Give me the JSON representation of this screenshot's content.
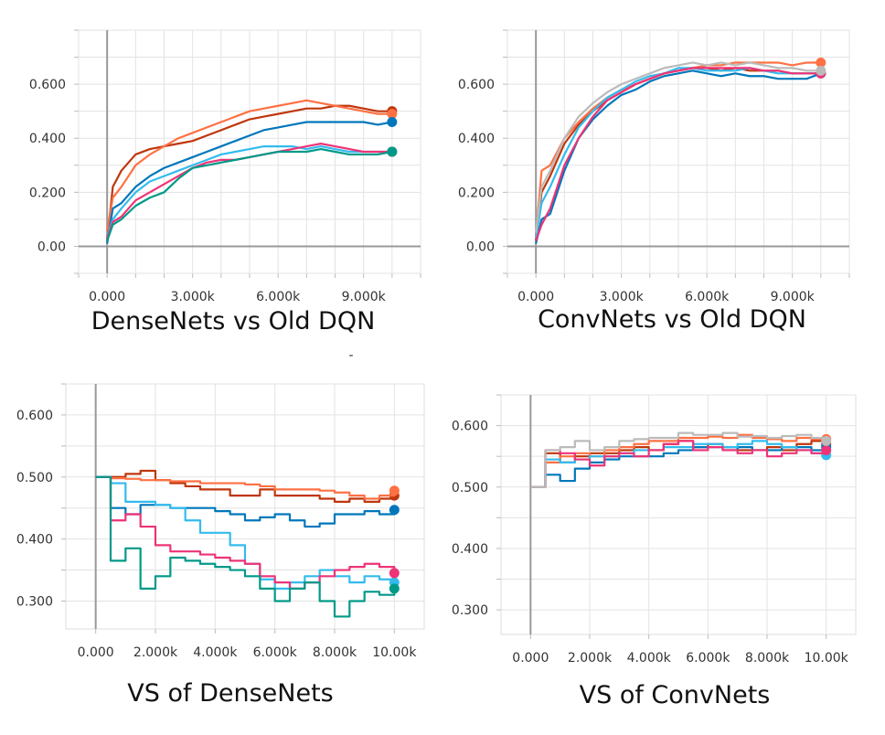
{
  "stray_mark": "-",
  "chart_data": [
    {
      "type": "line",
      "title": "DenseNets vs Old DQN",
      "xlabel": "",
      "ylabel": "",
      "xlim": [
        -1000,
        11000
      ],
      "ylim": [
        -0.1,
        0.8
      ],
      "x_ticks": [
        0,
        3000,
        6000,
        9000
      ],
      "x_tick_labels": [
        "0.000",
        "3.000k",
        "6.000k",
        "9.000k"
      ],
      "y_ticks": [
        0,
        0.2,
        0.4,
        0.6
      ],
      "y_tick_labels": [
        "0.00",
        "0.200",
        "0.400",
        "0.600"
      ],
      "grid": true,
      "x": [
        0,
        200,
        500,
        1000,
        1500,
        2000,
        2500,
        3000,
        3500,
        4000,
        4500,
        5000,
        5500,
        6000,
        6500,
        7000,
        7500,
        8000,
        8500,
        9000,
        9500,
        10000
      ],
      "series": [
        {
          "color": "#bf360c",
          "values": [
            0.02,
            0.22,
            0.28,
            0.34,
            0.36,
            0.37,
            0.38,
            0.39,
            0.41,
            0.43,
            0.45,
            0.47,
            0.48,
            0.49,
            0.5,
            0.51,
            0.51,
            0.52,
            0.52,
            0.51,
            0.5,
            0.5
          ]
        },
        {
          "color": "#ff7043",
          "values": [
            0.06,
            0.18,
            0.22,
            0.3,
            0.34,
            0.37,
            0.4,
            0.42,
            0.44,
            0.46,
            0.48,
            0.5,
            0.51,
            0.52,
            0.53,
            0.54,
            0.53,
            0.52,
            0.51,
            0.5,
            0.49,
            0.49
          ]
        },
        {
          "color": "#0077bb",
          "values": [
            0.01,
            0.14,
            0.16,
            0.22,
            0.26,
            0.29,
            0.31,
            0.33,
            0.35,
            0.37,
            0.39,
            0.41,
            0.43,
            0.44,
            0.45,
            0.46,
            0.46,
            0.46,
            0.46,
            0.46,
            0.45,
            0.46
          ]
        },
        {
          "color": "#33bbee",
          "values": [
            0.04,
            0.1,
            0.14,
            0.2,
            0.24,
            0.26,
            0.28,
            0.3,
            0.32,
            0.34,
            0.35,
            0.36,
            0.37,
            0.37,
            0.37,
            0.36,
            0.37,
            0.36,
            0.35,
            0.35,
            0.35,
            0.35
          ]
        },
        {
          "color": "#ee3377",
          "values": [
            0.03,
            0.09,
            0.11,
            0.17,
            0.2,
            0.23,
            0.26,
            0.29,
            0.31,
            0.32,
            0.32,
            0.33,
            0.34,
            0.35,
            0.36,
            0.37,
            0.38,
            0.37,
            0.36,
            0.35,
            0.35,
            0.35
          ]
        },
        {
          "color": "#009988",
          "values": [
            0.02,
            0.08,
            0.1,
            0.15,
            0.18,
            0.2,
            0.25,
            0.29,
            0.3,
            0.31,
            0.32,
            0.33,
            0.34,
            0.35,
            0.35,
            0.35,
            0.36,
            0.35,
            0.34,
            0.34,
            0.34,
            0.35
          ]
        }
      ]
    },
    {
      "type": "line",
      "title": "ConvNets vs Old DQN",
      "xlabel": "",
      "ylabel": "",
      "xlim": [
        -1000,
        11000
      ],
      "ylim": [
        -0.1,
        0.8
      ],
      "x_ticks": [
        0,
        3000,
        6000,
        9000
      ],
      "x_tick_labels": [
        "0.000",
        "3.000k",
        "6.000k",
        "9.000k"
      ],
      "y_ticks": [
        0,
        0.2,
        0.4,
        0.6
      ],
      "y_tick_labels": [
        "0.00",
        "0.200",
        "0.400",
        "0.600"
      ],
      "grid": true,
      "x": [
        0,
        200,
        500,
        1000,
        1500,
        2000,
        2500,
        3000,
        3500,
        4000,
        4500,
        5000,
        5500,
        6000,
        6500,
        7000,
        7500,
        8000,
        8500,
        9000,
        9500,
        10000
      ],
      "series": [
        {
          "color": "#bf360c",
          "values": [
            0.02,
            0.2,
            0.26,
            0.38,
            0.45,
            0.5,
            0.54,
            0.57,
            0.6,
            0.62,
            0.64,
            0.65,
            0.66,
            0.66,
            0.65,
            0.66,
            0.65,
            0.65,
            0.65,
            0.64,
            0.64,
            0.64
          ]
        },
        {
          "color": "#ff7043",
          "values": [
            0.04,
            0.28,
            0.3,
            0.4,
            0.46,
            0.51,
            0.55,
            0.58,
            0.6,
            0.62,
            0.64,
            0.65,
            0.66,
            0.67,
            0.67,
            0.68,
            0.68,
            0.68,
            0.68,
            0.67,
            0.68,
            0.68
          ]
        },
        {
          "color": "#0077bb",
          "values": [
            0.01,
            0.1,
            0.12,
            0.28,
            0.4,
            0.47,
            0.52,
            0.56,
            0.58,
            0.61,
            0.63,
            0.64,
            0.65,
            0.64,
            0.63,
            0.64,
            0.63,
            0.63,
            0.62,
            0.62,
            0.62,
            0.64
          ]
        },
        {
          "color": "#33bbee",
          "values": [
            0.03,
            0.16,
            0.22,
            0.34,
            0.44,
            0.5,
            0.55,
            0.58,
            0.61,
            0.63,
            0.64,
            0.66,
            0.66,
            0.65,
            0.65,
            0.65,
            0.66,
            0.65,
            0.64,
            0.64,
            0.64,
            0.64
          ]
        },
        {
          "color": "#ee3377",
          "values": [
            0.02,
            0.08,
            0.14,
            0.3,
            0.4,
            0.48,
            0.54,
            0.57,
            0.6,
            0.62,
            0.64,
            0.65,
            0.66,
            0.66,
            0.66,
            0.66,
            0.66,
            0.65,
            0.65,
            0.64,
            0.64,
            0.64
          ]
        },
        {
          "color": "#bbbbbb",
          "values": [
            0.05,
            0.22,
            0.28,
            0.4,
            0.48,
            0.53,
            0.57,
            0.6,
            0.62,
            0.64,
            0.66,
            0.67,
            0.68,
            0.67,
            0.68,
            0.67,
            0.68,
            0.67,
            0.66,
            0.66,
            0.65,
            0.65
          ]
        }
      ]
    },
    {
      "type": "line",
      "title": "VS of DenseNets",
      "xlabel": "",
      "ylabel": "",
      "xlim": [
        -1000,
        11000
      ],
      "ylim": [
        0.255,
        0.65
      ],
      "x_ticks": [
        0,
        2000,
        4000,
        6000,
        8000,
        10000
      ],
      "x_tick_labels": [
        "0.000",
        "2.000k",
        "4.000k",
        "6.000k",
        "8.000k",
        "10.00k"
      ],
      "y_ticks": [
        0.3,
        0.4,
        0.5,
        0.6
      ],
      "y_tick_labels": [
        "0.300",
        "0.400",
        "0.500",
        "0.600"
      ],
      "grid": true,
      "x": [
        0,
        500,
        1000,
        1500,
        2000,
        2500,
        3000,
        3500,
        4000,
        4500,
        5000,
        5500,
        6000,
        6500,
        7000,
        7500,
        8000,
        8500,
        9000,
        9500,
        10000
      ],
      "series": [
        {
          "color": "#bf360c",
          "values": [
            0.5,
            0.5,
            0.505,
            0.51,
            0.495,
            0.49,
            0.485,
            0.48,
            0.48,
            0.47,
            0.47,
            0.48,
            0.47,
            0.47,
            0.47,
            0.465,
            0.46,
            0.465,
            0.46,
            0.465,
            0.47
          ]
        },
        {
          "color": "#ff7043",
          "values": [
            0.5,
            0.498,
            0.497,
            0.495,
            0.495,
            0.493,
            0.493,
            0.49,
            0.49,
            0.49,
            0.488,
            0.485,
            0.48,
            0.48,
            0.48,
            0.478,
            0.475,
            0.47,
            0.465,
            0.47,
            0.478
          ]
        },
        {
          "color": "#0077bb",
          "values": [
            0.5,
            0.45,
            0.44,
            0.455,
            0.455,
            0.45,
            0.45,
            0.45,
            0.445,
            0.44,
            0.43,
            0.435,
            0.44,
            0.43,
            0.42,
            0.425,
            0.44,
            0.44,
            0.445,
            0.44,
            0.447
          ]
        },
        {
          "color": "#33bbee",
          "values": [
            0.5,
            0.49,
            0.46,
            0.46,
            0.455,
            0.45,
            0.43,
            0.41,
            0.41,
            0.39,
            0.36,
            0.335,
            0.32,
            0.33,
            0.34,
            0.35,
            0.34,
            0.33,
            0.34,
            0.335,
            0.33
          ]
        },
        {
          "color": "#ee3377",
          "values": [
            0.5,
            0.43,
            0.44,
            0.42,
            0.39,
            0.38,
            0.38,
            0.375,
            0.37,
            0.365,
            0.36,
            0.34,
            0.33,
            0.32,
            0.33,
            0.34,
            0.35,
            0.355,
            0.36,
            0.355,
            0.345
          ]
        },
        {
          "color": "#009988",
          "values": [
            0.5,
            0.365,
            0.385,
            0.32,
            0.34,
            0.37,
            0.365,
            0.36,
            0.355,
            0.35,
            0.34,
            0.32,
            0.3,
            0.32,
            0.33,
            0.3,
            0.275,
            0.3,
            0.315,
            0.31,
            0.32
          ]
        }
      ]
    },
    {
      "type": "line",
      "title": "VS of ConvNets",
      "xlabel": "",
      "ylabel": "",
      "xlim": [
        -1000,
        11000
      ],
      "ylim": [
        0.26,
        0.65
      ],
      "x_ticks": [
        0,
        2000,
        4000,
        6000,
        8000,
        10000
      ],
      "x_tick_labels": [
        "0.000",
        "2.000k",
        "4.000k",
        "6.000k",
        "8.000k",
        "10.00k"
      ],
      "y_ticks": [
        0.3,
        0.4,
        0.5,
        0.6
      ],
      "y_tick_labels": [
        "0.300",
        "0.400",
        "0.500",
        "0.600"
      ],
      "grid": true,
      "x": [
        0,
        500,
        1000,
        1500,
        2000,
        2500,
        3000,
        3500,
        4000,
        4500,
        5000,
        5500,
        6000,
        6500,
        7000,
        7500,
        8000,
        8500,
        9000,
        9500,
        10000
      ],
      "series": [
        {
          "color": "#bf360c",
          "values": [
            0.5,
            0.555,
            0.54,
            0.55,
            0.555,
            0.555,
            0.56,
            0.565,
            0.56,
            0.57,
            0.575,
            0.565,
            0.57,
            0.565,
            0.56,
            0.56,
            0.565,
            0.56,
            0.57,
            0.575,
            0.57
          ]
        },
        {
          "color": "#ff7043",
          "values": [
            0.5,
            0.54,
            0.55,
            0.555,
            0.55,
            0.56,
            0.565,
            0.57,
            0.575,
            0.575,
            0.58,
            0.58,
            0.582,
            0.58,
            0.585,
            0.58,
            0.578,
            0.575,
            0.58,
            0.578,
            0.578
          ]
        },
        {
          "color": "#0077bb",
          "values": [
            0.5,
            0.52,
            0.51,
            0.53,
            0.54,
            0.545,
            0.55,
            0.55,
            0.55,
            0.555,
            0.56,
            0.565,
            0.565,
            0.56,
            0.565,
            0.56,
            0.56,
            0.565,
            0.565,
            0.56,
            0.565
          ]
        },
        {
          "color": "#33bbee",
          "values": [
            0.5,
            0.545,
            0.54,
            0.545,
            0.55,
            0.55,
            0.555,
            0.56,
            0.56,
            0.565,
            0.565,
            0.57,
            0.57,
            0.565,
            0.57,
            0.575,
            0.57,
            0.565,
            0.56,
            0.555,
            0.552
          ]
        },
        {
          "color": "#ee3377",
          "values": [
            0.5,
            0.56,
            0.555,
            0.545,
            0.535,
            0.55,
            0.555,
            0.55,
            0.56,
            0.57,
            0.575,
            0.56,
            0.565,
            0.56,
            0.555,
            0.56,
            0.55,
            0.555,
            0.56,
            0.555,
            0.56
          ]
        },
        {
          "color": "#bbbbbb",
          "values": [
            0.5,
            0.56,
            0.565,
            0.575,
            0.56,
            0.565,
            0.575,
            0.578,
            0.58,
            0.58,
            0.588,
            0.585,
            0.585,
            0.588,
            0.582,
            0.583,
            0.58,
            0.583,
            0.585,
            0.58,
            0.575
          ]
        }
      ]
    }
  ]
}
